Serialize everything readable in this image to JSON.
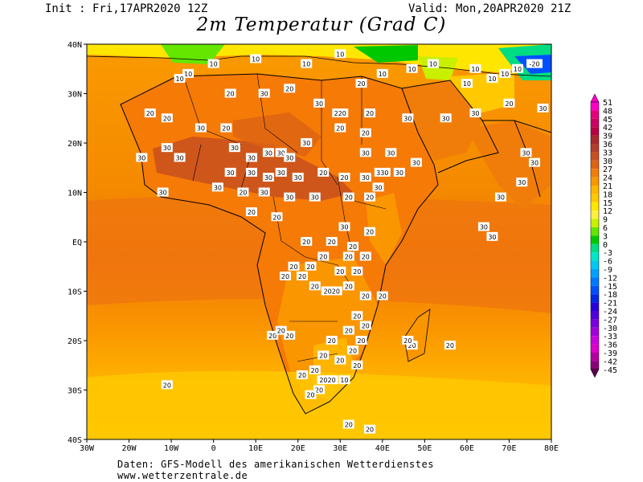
{
  "header": {
    "init": "Init : Fri,17APR2020 12Z",
    "valid": "Valid: Mon,20APR2020 21Z",
    "title": "2m Temperatur (Grad C)"
  },
  "axes": {
    "lat_labels": [
      "40N",
      "30N",
      "20N",
      "10N",
      "EQ",
      "10S",
      "20S",
      "30S",
      "40S"
    ],
    "lon_labels": [
      "30W",
      "20W",
      "10W",
      "0",
      "10E",
      "20E",
      "30E",
      "40E",
      "50E",
      "60E",
      "70E",
      "80E"
    ]
  },
  "legend": {
    "values": [
      "51",
      "48",
      "45",
      "42",
      "39",
      "36",
      "33",
      "30",
      "27",
      "24",
      "21",
      "18",
      "15",
      "12",
      "9",
      "6",
      "3",
      "0",
      "-3",
      "-6",
      "-9",
      "-12",
      "-15",
      "-18",
      "-21",
      "-24",
      "-27",
      "-30",
      "-33",
      "-36",
      "-39",
      "-42",
      "-45"
    ],
    "colors": [
      "#ff00c8",
      "#e6007a",
      "#cc0060",
      "#b80040",
      "#a8282d",
      "#b43c2d",
      "#c8501e",
      "#dc6414",
      "#f07d0a",
      "#fa9600",
      "#ffb400",
      "#ffc800",
      "#ffe600",
      "#fff03c",
      "#c8f000",
      "#64e600",
      "#00c800",
      "#00dc82",
      "#00e6c8",
      "#00c8f0",
      "#00a0ff",
      "#0078ff",
      "#0050ff",
      "#0028e6",
      "#2800dc",
      "#5000dc",
      "#7800dc",
      "#a000dc",
      "#c800dc",
      "#dc00c8",
      "#b400a0",
      "#8c0078",
      "#5a0050"
    ]
  },
  "contour_labels": [
    {
      "lon": 0,
      "lat": 36,
      "text": "10"
    },
    {
      "lon": -6,
      "lat": 34,
      "text": "10"
    },
    {
      "lon": -8,
      "lat": 33,
      "text": "10"
    },
    {
      "lon": 10,
      "lat": 37,
      "text": "10"
    },
    {
      "lon": 22,
      "lat": 36,
      "text": "10"
    },
    {
      "lon": 30,
      "lat": 38,
      "text": "10"
    },
    {
      "lon": 18,
      "lat": 31,
      "text": "20"
    },
    {
      "lon": 12,
      "lat": 30,
      "text": "30"
    },
    {
      "lon": 4,
      "lat": 30,
      "text": "20"
    },
    {
      "lon": -15,
      "lat": 26,
      "text": "20"
    },
    {
      "lon": -11,
      "lat": 25,
      "text": "20"
    },
    {
      "lon": 35,
      "lat": 32,
      "text": "20"
    },
    {
      "lon": 40,
      "lat": 34,
      "text": "10"
    },
    {
      "lon": 47,
      "lat": 35,
      "text": "10"
    },
    {
      "lon": 52,
      "lat": 36,
      "text": "10"
    },
    {
      "lon": 60,
      "lat": 32,
      "text": "10"
    },
    {
      "lon": 62,
      "lat": 35,
      "text": "10"
    },
    {
      "lon": 66,
      "lat": 33,
      "text": "10"
    },
    {
      "lon": 69,
      "lat": 34,
      "text": "10"
    },
    {
      "lon": 72,
      "lat": 35,
      "text": "10"
    },
    {
      "lon": 76,
      "lat": 36,
      "text": "-20"
    },
    {
      "lon": 70,
      "lat": 28,
      "text": "20"
    },
    {
      "lon": 78,
      "lat": 27,
      "text": "30"
    },
    {
      "lon": 25,
      "lat": 28,
      "text": "30"
    },
    {
      "lon": 30,
      "lat": 26,
      "text": "220"
    },
    {
      "lon": 37,
      "lat": 26,
      "text": "20"
    },
    {
      "lon": 46,
      "lat": 25,
      "text": "30"
    },
    {
      "lon": 55,
      "lat": 25,
      "text": "30"
    },
    {
      "lon": 62,
      "lat": 26,
      "text": "30"
    },
    {
      "lon": 36,
      "lat": 22,
      "text": "20"
    },
    {
      "lon": 30,
      "lat": 23,
      "text": "20"
    },
    {
      "lon": 3,
      "lat": 23,
      "text": "20"
    },
    {
      "lon": -3,
      "lat": 23,
      "text": "30"
    },
    {
      "lon": -17,
      "lat": 17,
      "text": "30"
    },
    {
      "lon": -11,
      "lat": 19,
      "text": "30"
    },
    {
      "lon": -8,
      "lat": 17,
      "text": "30"
    },
    {
      "lon": 5,
      "lat": 19,
      "text": "30"
    },
    {
      "lon": 9,
      "lat": 17,
      "text": "30"
    },
    {
      "lon": 13,
      "lat": 18,
      "text": "30"
    },
    {
      "lon": 16,
      "lat": 18,
      "text": "30"
    },
    {
      "lon": 18,
      "lat": 17,
      "text": "30"
    },
    {
      "lon": 22,
      "lat": 20,
      "text": "30"
    },
    {
      "lon": 36,
      "lat": 18,
      "text": "30"
    },
    {
      "lon": 42,
      "lat": 18,
      "text": "30"
    },
    {
      "lon": 48,
      "lat": 16,
      "text": "30"
    },
    {
      "lon": 4,
      "lat": 14,
      "text": "30"
    },
    {
      "lon": 9,
      "lat": 14,
      "text": "30"
    },
    {
      "lon": 13,
      "lat": 13,
      "text": "30"
    },
    {
      "lon": 16,
      "lat": 14,
      "text": "30"
    },
    {
      "lon": 20,
      "lat": 13,
      "text": "30"
    },
    {
      "lon": 26,
      "lat": 14,
      "text": "20"
    },
    {
      "lon": 31,
      "lat": 13,
      "text": "20"
    },
    {
      "lon": 36,
      "lat": 13,
      "text": "30"
    },
    {
      "lon": 40,
      "lat": 14,
      "text": "330"
    },
    {
      "lon": 44,
      "lat": 14,
      "text": "30"
    },
    {
      "lon": -12,
      "lat": 10,
      "text": "30"
    },
    {
      "lon": 1,
      "lat": 11,
      "text": "30"
    },
    {
      "lon": 7,
      "lat": 10,
      "text": "20"
    },
    {
      "lon": 12,
      "lat": 10,
      "text": "30"
    },
    {
      "lon": 18,
      "lat": 9,
      "text": "30"
    },
    {
      "lon": 24,
      "lat": 9,
      "text": "30"
    },
    {
      "lon": 32,
      "lat": 9,
      "text": "20"
    },
    {
      "lon": 37,
      "lat": 9,
      "text": "20"
    },
    {
      "lon": 39,
      "lat": 11,
      "text": "30"
    },
    {
      "lon": 9,
      "lat": 6,
      "text": "20"
    },
    {
      "lon": 15,
      "lat": 5,
      "text": "20"
    },
    {
      "lon": 31,
      "lat": 3,
      "text": "30"
    },
    {
      "lon": 37,
      "lat": 2,
      "text": "20"
    },
    {
      "lon": 28,
      "lat": 0,
      "text": "20"
    },
    {
      "lon": 33,
      "lat": -1,
      "text": "20"
    },
    {
      "lon": 22,
      "lat": 0,
      "text": "20"
    },
    {
      "lon": 26,
      "lat": -3,
      "text": "20"
    },
    {
      "lon": 32,
      "lat": -3,
      "text": "20"
    },
    {
      "lon": 36,
      "lat": -3,
      "text": "20"
    },
    {
      "lon": 19,
      "lat": -5,
      "text": "20"
    },
    {
      "lon": 23,
      "lat": -5,
      "text": "20"
    },
    {
      "lon": 30,
      "lat": -6,
      "text": "20"
    },
    {
      "lon": 34,
      "lat": -6,
      "text": "20"
    },
    {
      "lon": 21,
      "lat": -7,
      "text": "20"
    },
    {
      "lon": 17,
      "lat": -7,
      "text": "20"
    },
    {
      "lon": 24,
      "lat": -9,
      "text": "20"
    },
    {
      "lon": 28,
      "lat": -10,
      "text": "2020"
    },
    {
      "lon": 32,
      "lat": -9,
      "text": "20"
    },
    {
      "lon": 36,
      "lat": -11,
      "text": "20"
    },
    {
      "lon": 40,
      "lat": -11,
      "text": "20"
    },
    {
      "lon": 34,
      "lat": -15,
      "text": "20"
    },
    {
      "lon": 36,
      "lat": -17,
      "text": "20"
    },
    {
      "lon": 32,
      "lat": -18,
      "text": "20"
    },
    {
      "lon": 28,
      "lat": -20,
      "text": "20"
    },
    {
      "lon": 26,
      "lat": -23,
      "text": "20"
    },
    {
      "lon": 30,
      "lat": -24,
      "text": "20"
    },
    {
      "lon": 33,
      "lat": -22,
      "text": "20"
    },
    {
      "lon": 35,
      "lat": -20,
      "text": "20"
    },
    {
      "lon": 34,
      "lat": -25,
      "text": "20"
    },
    {
      "lon": 24,
      "lat": -26,
      "text": "20"
    },
    {
      "lon": 27,
      "lat": -28,
      "text": "2020"
    },
    {
      "lon": 31,
      "lat": -28,
      "text": "10"
    },
    {
      "lon": 25,
      "lat": -30,
      "text": "20"
    },
    {
      "lon": 21,
      "lat": -27,
      "text": "20"
    },
    {
      "lon": 23,
      "lat": -31,
      "text": "20"
    },
    {
      "lon": 18,
      "lat": -19,
      "text": "20"
    },
    {
      "lon": 14,
      "lat": -19,
      "text": "20"
    },
    {
      "lon": 16,
      "lat": -18,
      "text": "20"
    },
    {
      "lon": 47,
      "lat": -21,
      "text": "20"
    },
    {
      "lon": 56,
      "lat": -21,
      "text": "20"
    },
    {
      "lon": 46,
      "lat": -20,
      "text": "20"
    },
    {
      "lon": -11,
      "lat": -29,
      "text": "20"
    },
    {
      "lon": 32,
      "lat": -37,
      "text": "20"
    },
    {
      "lon": 37,
      "lat": -38,
      "text": "20"
    },
    {
      "lon": 64,
      "lat": 3,
      "text": "30"
    },
    {
      "lon": 66,
      "lat": 1,
      "text": "30"
    },
    {
      "lon": 68,
      "lat": 9,
      "text": "30"
    },
    {
      "lon": 73,
      "lat": 12,
      "text": "30"
    },
    {
      "lon": 74,
      "lat": 18,
      "text": "30"
    },
    {
      "lon": 76,
      "lat": 16,
      "text": "30"
    }
  ],
  "footer": {
    "line1": "Daten: GFS-Modell des amerikanischen Wetterdienstes",
    "line2": "www.wetterzentrale.de"
  }
}
